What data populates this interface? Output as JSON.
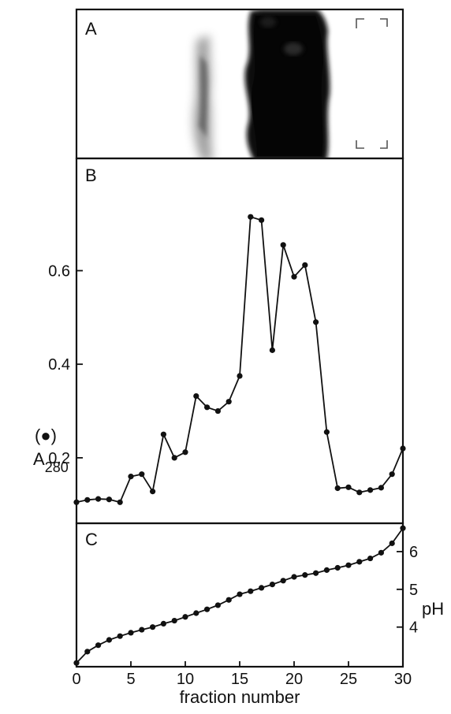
{
  "panels": {
    "a_label": "A",
    "b_label": "B",
    "c_label": "C"
  },
  "colors": {
    "ink": "#111111",
    "gel_band": "#0d0d0d",
    "background": "#ffffff"
  },
  "chart_data": [
    {
      "panel": "A",
      "type": "other",
      "description_hidden": false,
      "x_range": [
        0,
        30
      ],
      "band_centers_fraction": [
        11.2,
        16.5,
        20.5
      ]
    },
    {
      "panel": "B",
      "type": "line",
      "xlabel": "",
      "ylabel": "A",
      "ylabel_sub": "280",
      "ylabel_marker": "(●)",
      "xlim": [
        0,
        30
      ],
      "ylim": [
        0.06,
        0.84
      ],
      "y_ticks": [
        0.2,
        0.4,
        0.6
      ],
      "y_tick_labels": [
        "0.2",
        "0.4",
        "0.6"
      ],
      "x": [
        0,
        1,
        2,
        3,
        4,
        5,
        6,
        7,
        8,
        9,
        10,
        11,
        12,
        13,
        14,
        15,
        16,
        17,
        18,
        19,
        20,
        21,
        22,
        23,
        24,
        25,
        26,
        27,
        28,
        29,
        30
      ],
      "values": [
        0.105,
        0.11,
        0.112,
        0.111,
        0.105,
        0.16,
        0.165,
        0.128,
        0.25,
        0.2,
        0.212,
        0.332,
        0.308,
        0.3,
        0.32,
        0.375,
        0.715,
        0.708,
        0.43,
        0.655,
        0.587,
        0.612,
        0.49,
        0.255,
        0.135,
        0.137,
        0.126,
        0.131,
        0.136,
        0.165,
        0.22
      ]
    },
    {
      "panel": "C",
      "type": "line",
      "xlabel": "fraction number",
      "ylabel": "pH",
      "xlim": [
        0,
        30
      ],
      "ylim": [
        2.95,
        6.75
      ],
      "x_ticks": [
        0,
        5,
        10,
        15,
        20,
        25,
        30
      ],
      "x_tick_labels": [
        "0",
        "5",
        "10",
        "15",
        "20",
        "25",
        "30"
      ],
      "y_ticks": [
        4,
        5,
        6
      ],
      "y_tick_labels": [
        "4",
        "5",
        "6"
      ],
      "x": [
        0,
        1,
        2,
        3,
        4,
        5,
        6,
        7,
        8,
        9,
        10,
        11,
        12,
        13,
        14,
        15,
        16,
        17,
        18,
        19,
        20,
        21,
        22,
        23,
        24,
        25,
        26,
        27,
        28,
        29,
        30
      ],
      "values": [
        3.05,
        3.35,
        3.52,
        3.66,
        3.76,
        3.85,
        3.93,
        4.0,
        4.09,
        4.17,
        4.27,
        4.37,
        4.47,
        4.58,
        4.72,
        4.87,
        4.95,
        5.04,
        5.13,
        5.23,
        5.33,
        5.38,
        5.43,
        5.51,
        5.57,
        5.64,
        5.73,
        5.82,
        5.97,
        6.22,
        6.62
      ]
    }
  ]
}
